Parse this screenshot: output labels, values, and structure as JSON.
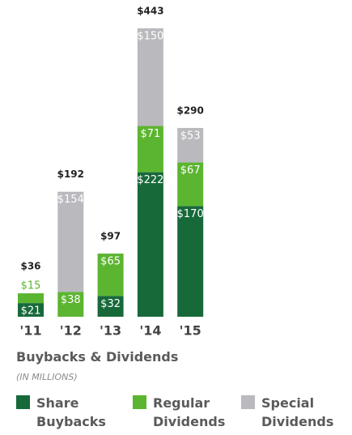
{
  "chart_data": {
    "type": "stacked_bar",
    "title": "Buybacks & Dividends",
    "subtitle": "(IN MILLIONS)",
    "categories": [
      "'11",
      "'12",
      "'13",
      "'14",
      "'15"
    ],
    "series": [
      {
        "name": "Share Buybacks",
        "color": "#17693a",
        "values": [
          21,
          null,
          32,
          222,
          170
        ],
        "value_labels": [
          "$21",
          null,
          "$32",
          "$222",
          "$170"
        ]
      },
      {
        "name": "Regular Dividends",
        "color": "#5cb531",
        "values": [
          15,
          38,
          65,
          71,
          67
        ],
        "value_labels": [
          "$15",
          "$38",
          "$65",
          "$71",
          "$67"
        ]
      },
      {
        "name": "Special Dividends",
        "color": "#b9b9be",
        "values": [
          null,
          154,
          null,
          150,
          53
        ],
        "value_labels": [
          null,
          "$154",
          null,
          "$150",
          "$53"
        ]
      }
    ],
    "totals": [
      36,
      192,
      97,
      443,
      290
    ],
    "total_labels": [
      "$36",
      "$192",
      "$97",
      "$443",
      "$290"
    ]
  }
}
